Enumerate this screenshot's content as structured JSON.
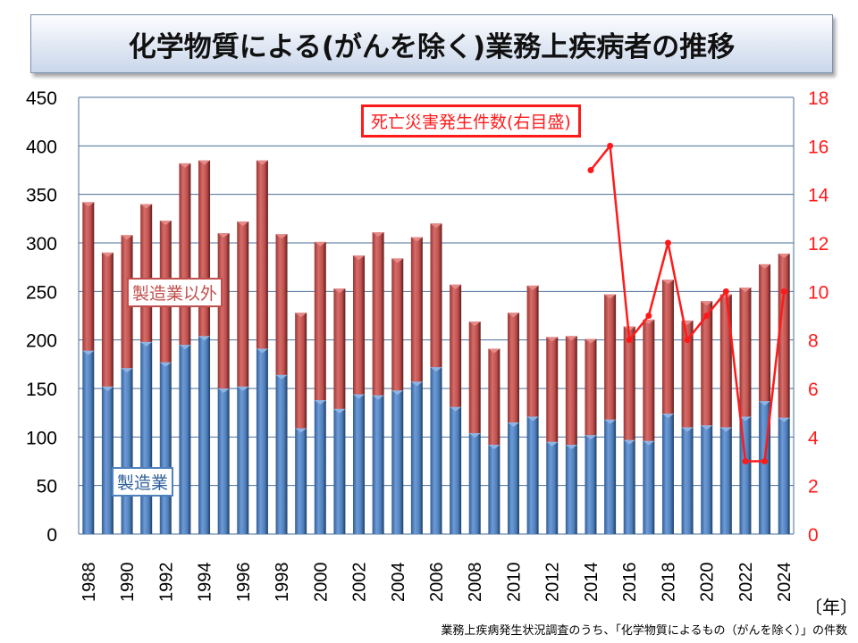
{
  "title": "化学物質による(がんを除く)業務上疾病者の推移",
  "footnote": "業務上疾病発生状況調査のうち、「化学物質によるもの（がんを除く）」の件数",
  "chart_data": {
    "type": "bar",
    "stacked": true,
    "title": "化学物質による(がんを除く)業務上疾病者の推移",
    "xlabel": "〔年〕",
    "ylabel": "",
    "ylim": [
      0,
      450
    ],
    "yticks": [
      0,
      50,
      100,
      150,
      200,
      250,
      300,
      350,
      400,
      450
    ],
    "y2lim": [
      0,
      18
    ],
    "y2ticks": [
      0,
      2,
      4,
      6,
      8,
      10,
      12,
      14,
      16,
      18
    ],
    "grid": true,
    "categories": [
      1988,
      1989,
      1990,
      1991,
      1992,
      1993,
      1994,
      1995,
      1996,
      1997,
      1998,
      1999,
      2000,
      2001,
      2002,
      2003,
      2004,
      2005,
      2006,
      2007,
      2008,
      2009,
      2010,
      2011,
      2012,
      2013,
      2014,
      2015,
      2016,
      2017,
      2018,
      2019,
      2020,
      2021,
      2022,
      2023,
      2024
    ],
    "xtick_labels": [
      "1988",
      "1990",
      "1992",
      "1994",
      "1996",
      "1998",
      "2000",
      "2002",
      "2004",
      "2006",
      "2008",
      "2010",
      "2012",
      "2014",
      "2016",
      "2018",
      "2020",
      "2022",
      "2024"
    ],
    "series": [
      {
        "name": "製造業",
        "color": "#4f81bd",
        "values": [
          189,
          152,
          171,
          198,
          177,
          195,
          204,
          150,
          152,
          191,
          164,
          109,
          138,
          129,
          144,
          143,
          148,
          157,
          172,
          131,
          104,
          92,
          115,
          121,
          95,
          92,
          102,
          118,
          97,
          96,
          124,
          110,
          112,
          110,
          121,
          137,
          120
        ]
      },
      {
        "name": "製造業以外",
        "color": "#c0504d",
        "values": [
          153,
          138,
          137,
          142,
          146,
          187,
          181,
          160,
          170,
          194,
          145,
          119,
          163,
          124,
          143,
          168,
          136,
          149,
          148,
          126,
          115,
          99,
          113,
          135,
          108,
          112,
          99,
          129,
          117,
          125,
          138,
          110,
          128,
          137,
          133,
          141,
          169
        ]
      },
      {
        "name": "死亡災害発生件数(右目盛)",
        "color": "#ff1a1a",
        "type": "line",
        "axis": "right",
        "x": [
          2014,
          2015,
          2016,
          2017,
          2018,
          2019,
          2020,
          2021,
          2022,
          2023,
          2024
        ],
        "values": [
          15,
          16,
          8,
          9,
          12,
          8,
          9,
          10,
          3,
          3,
          10
        ]
      }
    ],
    "legend_labels": {
      "manufacturing": "製造業",
      "non_manufacturing": "製造業以外",
      "deaths": "死亡災害発生件数(右目盛)"
    }
  }
}
